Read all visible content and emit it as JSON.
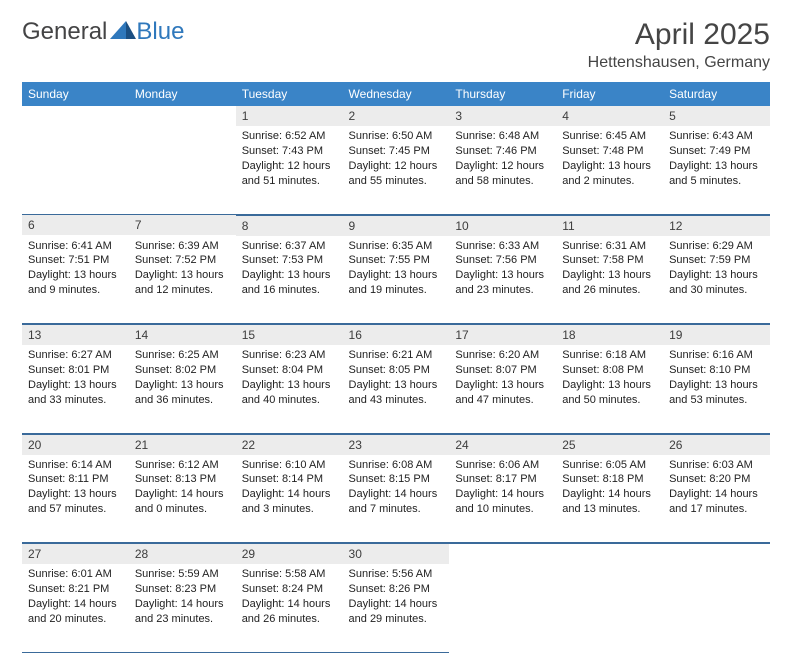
{
  "brand": {
    "part1": "General",
    "part2": "Blue"
  },
  "title": "April 2025",
  "location": "Hettenshausen, Germany",
  "colors": {
    "header_bg": "#3a84c7",
    "header_text": "#ffffff",
    "daynum_bg": "#ececec",
    "rule": "#3a6a9a",
    "brand_gray": "#444445",
    "brand_blue": "#2f78bc",
    "body_text": "#222222",
    "background": "#ffffff"
  },
  "weekdays": [
    "Sunday",
    "Monday",
    "Tuesday",
    "Wednesday",
    "Thursday",
    "Friday",
    "Saturday"
  ],
  "weeks": [
    [
      null,
      null,
      {
        "n": "1",
        "sunrise": "6:52 AM",
        "sunset": "7:43 PM",
        "dl": "12 hours and 51 minutes."
      },
      {
        "n": "2",
        "sunrise": "6:50 AM",
        "sunset": "7:45 PM",
        "dl": "12 hours and 55 minutes."
      },
      {
        "n": "3",
        "sunrise": "6:48 AM",
        "sunset": "7:46 PM",
        "dl": "12 hours and 58 minutes."
      },
      {
        "n": "4",
        "sunrise": "6:45 AM",
        "sunset": "7:48 PM",
        "dl": "13 hours and 2 minutes."
      },
      {
        "n": "5",
        "sunrise": "6:43 AM",
        "sunset": "7:49 PM",
        "dl": "13 hours and 5 minutes."
      }
    ],
    [
      {
        "n": "6",
        "sunrise": "6:41 AM",
        "sunset": "7:51 PM",
        "dl": "13 hours and 9 minutes."
      },
      {
        "n": "7",
        "sunrise": "6:39 AM",
        "sunset": "7:52 PM",
        "dl": "13 hours and 12 minutes."
      },
      {
        "n": "8",
        "sunrise": "6:37 AM",
        "sunset": "7:53 PM",
        "dl": "13 hours and 16 minutes."
      },
      {
        "n": "9",
        "sunrise": "6:35 AM",
        "sunset": "7:55 PM",
        "dl": "13 hours and 19 minutes."
      },
      {
        "n": "10",
        "sunrise": "6:33 AM",
        "sunset": "7:56 PM",
        "dl": "13 hours and 23 minutes."
      },
      {
        "n": "11",
        "sunrise": "6:31 AM",
        "sunset": "7:58 PM",
        "dl": "13 hours and 26 minutes."
      },
      {
        "n": "12",
        "sunrise": "6:29 AM",
        "sunset": "7:59 PM",
        "dl": "13 hours and 30 minutes."
      }
    ],
    [
      {
        "n": "13",
        "sunrise": "6:27 AM",
        "sunset": "8:01 PM",
        "dl": "13 hours and 33 minutes."
      },
      {
        "n": "14",
        "sunrise": "6:25 AM",
        "sunset": "8:02 PM",
        "dl": "13 hours and 36 minutes."
      },
      {
        "n": "15",
        "sunrise": "6:23 AM",
        "sunset": "8:04 PM",
        "dl": "13 hours and 40 minutes."
      },
      {
        "n": "16",
        "sunrise": "6:21 AM",
        "sunset": "8:05 PM",
        "dl": "13 hours and 43 minutes."
      },
      {
        "n": "17",
        "sunrise": "6:20 AM",
        "sunset": "8:07 PM",
        "dl": "13 hours and 47 minutes."
      },
      {
        "n": "18",
        "sunrise": "6:18 AM",
        "sunset": "8:08 PM",
        "dl": "13 hours and 50 minutes."
      },
      {
        "n": "19",
        "sunrise": "6:16 AM",
        "sunset": "8:10 PM",
        "dl": "13 hours and 53 minutes."
      }
    ],
    [
      {
        "n": "20",
        "sunrise": "6:14 AM",
        "sunset": "8:11 PM",
        "dl": "13 hours and 57 minutes."
      },
      {
        "n": "21",
        "sunrise": "6:12 AM",
        "sunset": "8:13 PM",
        "dl": "14 hours and 0 minutes."
      },
      {
        "n": "22",
        "sunrise": "6:10 AM",
        "sunset": "8:14 PM",
        "dl": "14 hours and 3 minutes."
      },
      {
        "n": "23",
        "sunrise": "6:08 AM",
        "sunset": "8:15 PM",
        "dl": "14 hours and 7 minutes."
      },
      {
        "n": "24",
        "sunrise": "6:06 AM",
        "sunset": "8:17 PM",
        "dl": "14 hours and 10 minutes."
      },
      {
        "n": "25",
        "sunrise": "6:05 AM",
        "sunset": "8:18 PM",
        "dl": "14 hours and 13 minutes."
      },
      {
        "n": "26",
        "sunrise": "6:03 AM",
        "sunset": "8:20 PM",
        "dl": "14 hours and 17 minutes."
      }
    ],
    [
      {
        "n": "27",
        "sunrise": "6:01 AM",
        "sunset": "8:21 PM",
        "dl": "14 hours and 20 minutes."
      },
      {
        "n": "28",
        "sunrise": "5:59 AM",
        "sunset": "8:23 PM",
        "dl": "14 hours and 23 minutes."
      },
      {
        "n": "29",
        "sunrise": "5:58 AM",
        "sunset": "8:24 PM",
        "dl": "14 hours and 26 minutes."
      },
      {
        "n": "30",
        "sunrise": "5:56 AM",
        "sunset": "8:26 PM",
        "dl": "14 hours and 29 minutes."
      },
      null,
      null,
      null
    ]
  ],
  "labels": {
    "sunrise": "Sunrise:",
    "sunset": "Sunset:",
    "daylight": "Daylight:"
  }
}
